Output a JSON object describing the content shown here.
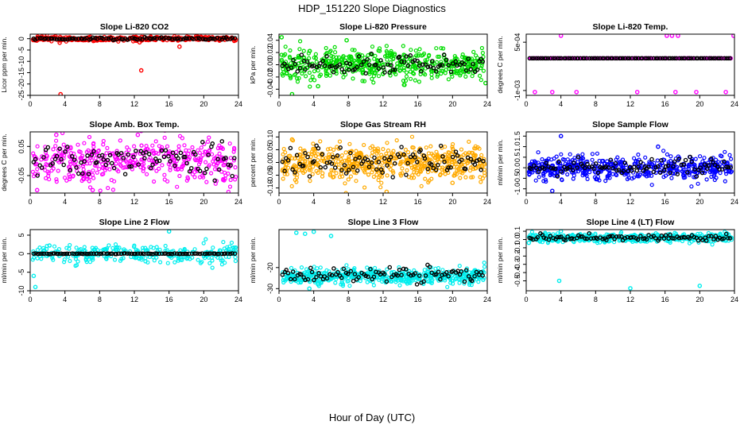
{
  "figure": {
    "title": "HDP_151220  Slope Diagnostics",
    "xlabel": "Hour of Day (UTC)"
  },
  "chart_data": [
    {
      "type": "scatter",
      "title": "Slope Li-820 CO2",
      "ylabel": "Licor ppm per min.",
      "xlim": [
        0,
        24
      ],
      "xticks": [
        0,
        4,
        8,
        12,
        16,
        20,
        24
      ],
      "ylim": [
        -25,
        2
      ],
      "yticks": [
        -25,
        -20,
        -15,
        -10,
        -5,
        0
      ],
      "ytick_labels": [
        "-25",
        "-20",
        "-15",
        "-10",
        "-5",
        "0"
      ],
      "color": "#ff0000",
      "center": 0,
      "spread": 0.5,
      "n": 380,
      "seed": 11,
      "outliers": [
        [
          3.5,
          -24.5
        ],
        [
          12.8,
          -14
        ],
        [
          17.2,
          -3.5
        ],
        [
          3.4,
          -1.8
        ],
        [
          12.6,
          -1.6
        ]
      ],
      "black_center": 0,
      "black_spread": 0.25,
      "n_black": 95
    },
    {
      "type": "scatter",
      "title": "Slope Li-820 Pressure",
      "ylabel": "kPa per min.",
      "xlim": [
        0,
        24
      ],
      "xticks": [
        0,
        4,
        8,
        12,
        16,
        20,
        24
      ],
      "ylim": [
        -0.05,
        0.05
      ],
      "yticks": [
        -0.04,
        -0.02,
        0.0,
        0.02,
        0.04
      ],
      "ytick_labels": [
        "-0.04",
        "-0.02",
        "0.00",
        "0.02",
        "0.04"
      ],
      "color": "#00dd00",
      "center": 0,
      "spread": 0.012,
      "n": 520,
      "seed": 22,
      "outliers": [
        [
          0.3,
          0.045
        ],
        [
          1.5,
          -0.048
        ],
        [
          7.8,
          0.04
        ],
        [
          4.5,
          -0.035
        ],
        [
          23.8,
          -0.03
        ]
      ],
      "black_center": 0,
      "black_spread": 0.008,
      "n_black": 95
    },
    {
      "type": "scatter",
      "title": "Slope Li-820 Temp.",
      "ylabel": "degrees C per min.",
      "xlim": [
        0,
        24
      ],
      "xticks": [
        0,
        4,
        8,
        12,
        16,
        20,
        24
      ],
      "ylim": [
        -0.00115,
        0.00075
      ],
      "yticks": [
        -0.001,
        0.0005
      ],
      "ytick_labels": [
        "-1e-03",
        "5e-04"
      ],
      "color": "#ff00ff",
      "center": 0,
      "spread": 0,
      "n": 260,
      "seed": 33,
      "outliers": [
        [
          4.0,
          0.0007
        ],
        [
          16.2,
          0.0007
        ],
        [
          16.8,
          0.0007
        ],
        [
          17.5,
          0.0007
        ],
        [
          23.9,
          0.0007
        ],
        [
          1.0,
          -0.00105
        ],
        [
          3.0,
          -0.00105
        ],
        [
          5.8,
          -0.00105
        ],
        [
          12.8,
          -0.00105
        ],
        [
          17.2,
          -0.00105
        ],
        [
          19.6,
          -0.00105
        ],
        [
          23.0,
          -0.00105
        ]
      ],
      "black_center": 0,
      "black_spread": 0,
      "n_black": 95
    },
    {
      "type": "scatter",
      "title": "Slope Amb. Box Temp.",
      "ylabel": "degrees C per min.",
      "xlim": [
        0,
        24
      ],
      "xticks": [
        0,
        4,
        8,
        12,
        16,
        20,
        24
      ],
      "ylim": [
        -0.11,
        0.1
      ],
      "yticks": [
        -0.05,
        0.05
      ],
      "ytick_labels": [
        "-0.05",
        "0.05"
      ],
      "color": "#ff00ff",
      "center": 0,
      "spread": 0.04,
      "n": 430,
      "seed": 44,
      "outliers": [
        [
          3.0,
          0.09
        ],
        [
          12.4,
          0.09
        ],
        [
          0.8,
          -0.1
        ],
        [
          7.2,
          -0.1
        ]
      ],
      "black_center": 0,
      "black_spread": 0.03,
      "n_black": 95
    },
    {
      "type": "scatter",
      "title": "Slope Gas Stream RH",
      "ylabel": "percent per min.",
      "xlim": [
        0,
        24
      ],
      "xticks": [
        0,
        4,
        8,
        12,
        16,
        20,
        24
      ],
      "ylim": [
        -0.12,
        0.12
      ],
      "yticks": [
        -0.1,
        -0.05,
        0.0,
        0.05,
        0.1
      ],
      "ytick_labels": [
        "-0.10",
        "-0.05",
        "0.00",
        "0.05",
        "0.10"
      ],
      "color": "#ffaa00",
      "center": 0,
      "spread": 0.035,
      "n": 560,
      "seed": 55,
      "outliers": [
        [
          12.4,
          -0.115
        ],
        [
          20.0,
          -0.08
        ],
        [
          1.5,
          0.09
        ]
      ],
      "black_center": 0,
      "black_spread": 0.03,
      "n_black": 95
    },
    {
      "type": "scatter",
      "title": "Slope Sample Flow",
      "ylabel": "ml/min per min.",
      "xlim": [
        0,
        24
      ],
      "xticks": [
        0,
        4,
        8,
        12,
        16,
        20,
        24
      ],
      "ylim": [
        -1.2,
        1.7
      ],
      "yticks": [
        -1.0,
        -0.5,
        0.0,
        0.5,
        1.0,
        1.5
      ],
      "ytick_labels": [
        "-1.0",
        "-0.5",
        "0.0",
        "0.5",
        "1.0",
        "1.5"
      ],
      "color": "#0000ff",
      "center": 0,
      "spread": 0.28,
      "n": 520,
      "seed": 66,
      "outliers": [
        [
          4.0,
          1.5
        ],
        [
          3.0,
          -1.1
        ],
        [
          15.2,
          1.0
        ]
      ],
      "black_center": 0,
      "black_spread": 0.2,
      "n_black": 95
    },
    {
      "type": "scatter",
      "title": "Slope Line 2 Flow",
      "ylabel": "ml/min per min.",
      "xlim": [
        0,
        24
      ],
      "xticks": [
        0,
        4,
        8,
        12,
        16,
        20,
        24
      ],
      "ylim": [
        -10,
        6.5
      ],
      "yticks": [
        -10,
        -5,
        0,
        5
      ],
      "ytick_labels": [
        "-10",
        "-5",
        "0",
        "5"
      ],
      "color": "#00eeee",
      "center": 0,
      "spread": 1.4,
      "n": 280,
      "seed": 77,
      "outliers": [
        [
          16.0,
          6
        ],
        [
          0.6,
          -9
        ],
        [
          0.4,
          -6
        ]
      ],
      "black_center": 0,
      "black_spread": 0.05,
      "n_black": 95
    },
    {
      "type": "scatter",
      "title": "Slope Line 3 Flow",
      "ylabel": "ml/min per min.",
      "xlim": [
        0,
        24
      ],
      "xticks": [
        0,
        4,
        8,
        12,
        16,
        20,
        24
      ],
      "ylim": [
        -31,
        -2
      ],
      "yticks": [
        -30,
        -20
      ],
      "ytick_labels": [
        "-30",
        "-20"
      ],
      "color": "#00eeee",
      "center": -24,
      "spread": 1.8,
      "n": 520,
      "seed": 88,
      "outliers": [
        [
          2.0,
          -3.5
        ],
        [
          3.0,
          -4
        ],
        [
          4.0,
          -3
        ],
        [
          6.0,
          -5
        ],
        [
          3.5,
          -30
        ],
        [
          4.5,
          -28
        ],
        [
          2.5,
          -27
        ]
      ],
      "black_center": -23.5,
      "black_spread": 1.8,
      "n_black": 95
    },
    {
      "type": "scatter",
      "title": "Slope Line 4 (LT) Flow",
      "ylabel": "ml/min per min.",
      "xlim": [
        0,
        24
      ],
      "xticks": [
        0,
        4,
        8,
        12,
        16,
        20,
        24
      ],
      "ylim": [
        -0.62,
        0.12
      ],
      "yticks": [
        -0.5,
        -0.4,
        -0.3,
        -0.2,
        -0.1,
        0.0,
        0.1
      ],
      "ytick_labels": [
        "-0.5",
        "-0.4",
        "-0.3",
        "-0.2",
        "-0.1",
        "0.0",
        "0.1"
      ],
      "color": "#00eeee",
      "center": 0.02,
      "spread": 0.025,
      "n": 520,
      "seed": 99,
      "outliers": [
        [
          3.8,
          -0.5
        ],
        [
          12.0,
          -0.59
        ],
        [
          20.0,
          -0.56
        ],
        [
          0.3,
          -0.04
        ],
        [
          4.0,
          0.1
        ]
      ],
      "black_center": 0.02,
      "black_spread": 0.02,
      "n_black": 95
    }
  ]
}
